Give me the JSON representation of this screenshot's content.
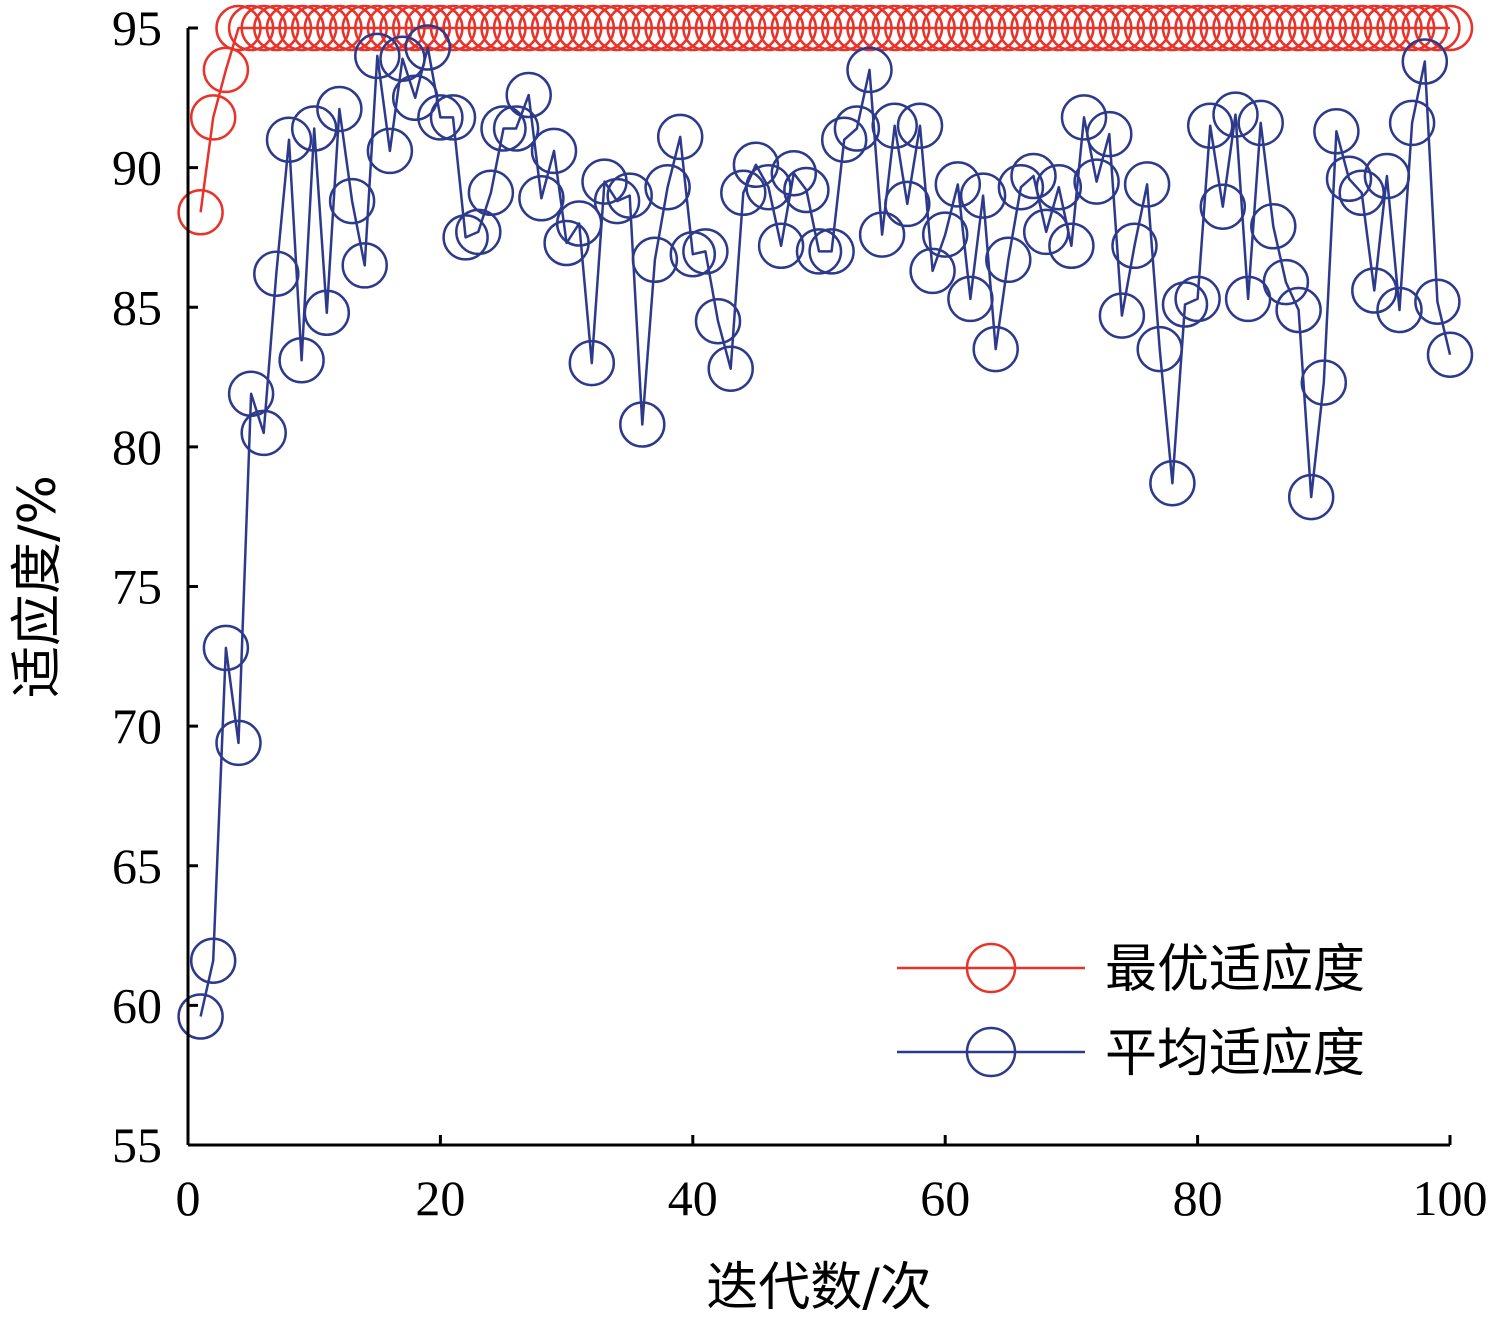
{
  "chart_data": {
    "type": "line",
    "title": "",
    "xlabel": "迭代数/次",
    "ylabel": "适应度/%",
    "xlim": [
      0,
      100
    ],
    "ylim": [
      55,
      95
    ],
    "xticks": [
      0,
      20,
      40,
      60,
      80,
      100
    ],
    "yticks": [
      55,
      60,
      65,
      70,
      75,
      80,
      85,
      90,
      95
    ],
    "x_tick_labels": [
      "0",
      "20",
      "40",
      "60",
      "80",
      "100"
    ],
    "y_tick_labels": [
      "55",
      "60",
      "65",
      "70",
      "75",
      "80",
      "85",
      "90",
      "95"
    ],
    "grid": false,
    "legend_position": "bottom-right",
    "marker": "circle",
    "series": [
      {
        "name": "最优适应度",
        "color": "#e8332a",
        "x": [
          1,
          2,
          3,
          4,
          5,
          6,
          7,
          8,
          9,
          10,
          11,
          12,
          13,
          14,
          15,
          16,
          17,
          18,
          19,
          20,
          21,
          22,
          23,
          24,
          25,
          26,
          27,
          28,
          29,
          30,
          31,
          32,
          33,
          34,
          35,
          36,
          37,
          38,
          39,
          40,
          41,
          42,
          43,
          44,
          45,
          46,
          47,
          48,
          49,
          50,
          51,
          52,
          53,
          54,
          55,
          56,
          57,
          58,
          59,
          60,
          61,
          62,
          63,
          64,
          65,
          66,
          67,
          68,
          69,
          70,
          71,
          72,
          73,
          74,
          75,
          76,
          77,
          78,
          79,
          80,
          81,
          82,
          83,
          84,
          85,
          86,
          87,
          88,
          89,
          90,
          91,
          92,
          93,
          94,
          95,
          96,
          97,
          98,
          99,
          100
        ],
        "values": [
          88.4,
          91.8,
          93.5,
          95,
          95,
          95,
          95,
          95,
          95,
          95,
          95,
          95,
          95,
          95,
          95,
          95,
          95,
          95,
          95,
          95,
          95,
          95,
          95,
          95,
          95,
          95,
          95,
          95,
          95,
          95,
          95,
          95,
          95,
          95,
          95,
          95,
          95,
          95,
          95,
          95,
          95,
          95,
          95,
          95,
          95,
          95,
          95,
          95,
          95,
          95,
          95,
          95,
          95,
          95,
          95,
          95,
          95,
          95,
          95,
          95,
          95,
          95,
          95,
          95,
          95,
          95,
          95,
          95,
          95,
          95,
          95,
          95,
          95,
          95,
          95,
          95,
          95,
          95,
          95,
          95,
          95,
          95,
          95,
          95,
          95,
          95,
          95,
          95,
          95,
          95,
          95,
          95,
          95,
          95,
          95,
          95,
          95,
          95,
          95,
          95
        ]
      },
      {
        "name": "平均适应度",
        "color": "#2d3a8c",
        "x": [
          1,
          2,
          3,
          4,
          5,
          6,
          7,
          8,
          9,
          10,
          11,
          12,
          13,
          14,
          15,
          16,
          17,
          18,
          19,
          20,
          21,
          22,
          23,
          24,
          25,
          26,
          27,
          28,
          29,
          30,
          31,
          32,
          33,
          34,
          35,
          36,
          37,
          38,
          39,
          40,
          41,
          42,
          43,
          44,
          45,
          46,
          47,
          48,
          49,
          50,
          51,
          52,
          53,
          54,
          55,
          56,
          57,
          58,
          59,
          60,
          61,
          62,
          63,
          64,
          65,
          66,
          67,
          68,
          69,
          70,
          71,
          72,
          73,
          74,
          75,
          76,
          77,
          78,
          79,
          80,
          81,
          82,
          83,
          84,
          85,
          86,
          87,
          88,
          89,
          90,
          91,
          92,
          93,
          94,
          95,
          96,
          97,
          98,
          99,
          100
        ],
        "values": [
          59.6,
          61.6,
          72.8,
          69.4,
          81.9,
          80.5,
          86.2,
          91.0,
          83.1,
          91.4,
          84.8,
          92.1,
          88.8,
          86.5,
          94.0,
          90.6,
          93.9,
          92.5,
          94.3,
          91.8,
          91.8,
          87.5,
          87.7,
          89.1,
          91.4,
          91.4,
          92.6,
          88.9,
          90.6,
          87.3,
          88.0,
          83.0,
          89.5,
          88.8,
          89.0,
          80.8,
          86.7,
          89.3,
          91.1,
          86.9,
          87.0,
          84.5,
          82.8,
          89.1,
          90.1,
          89.3,
          87.2,
          89.8,
          89.2,
          87.0,
          87.0,
          91.0,
          91.4,
          93.5,
          87.6,
          91.5,
          88.7,
          91.5,
          86.3,
          87.6,
          89.4,
          85.3,
          89.0,
          83.5,
          86.7,
          89.3,
          89.7,
          87.7,
          89.3,
          87.2,
          91.8,
          89.5,
          91.2,
          84.7,
          87.2,
          89.4,
          83.5,
          78.7,
          85.1,
          85.3,
          91.5,
          88.6,
          91.9,
          85.3,
          91.6,
          87.9,
          85.9,
          84.9,
          78.2,
          82.3,
          91.3,
          89.6,
          89.1,
          85.6,
          89.7,
          84.9,
          91.6,
          93.8,
          85.2,
          83.3
        ]
      }
    ]
  }
}
